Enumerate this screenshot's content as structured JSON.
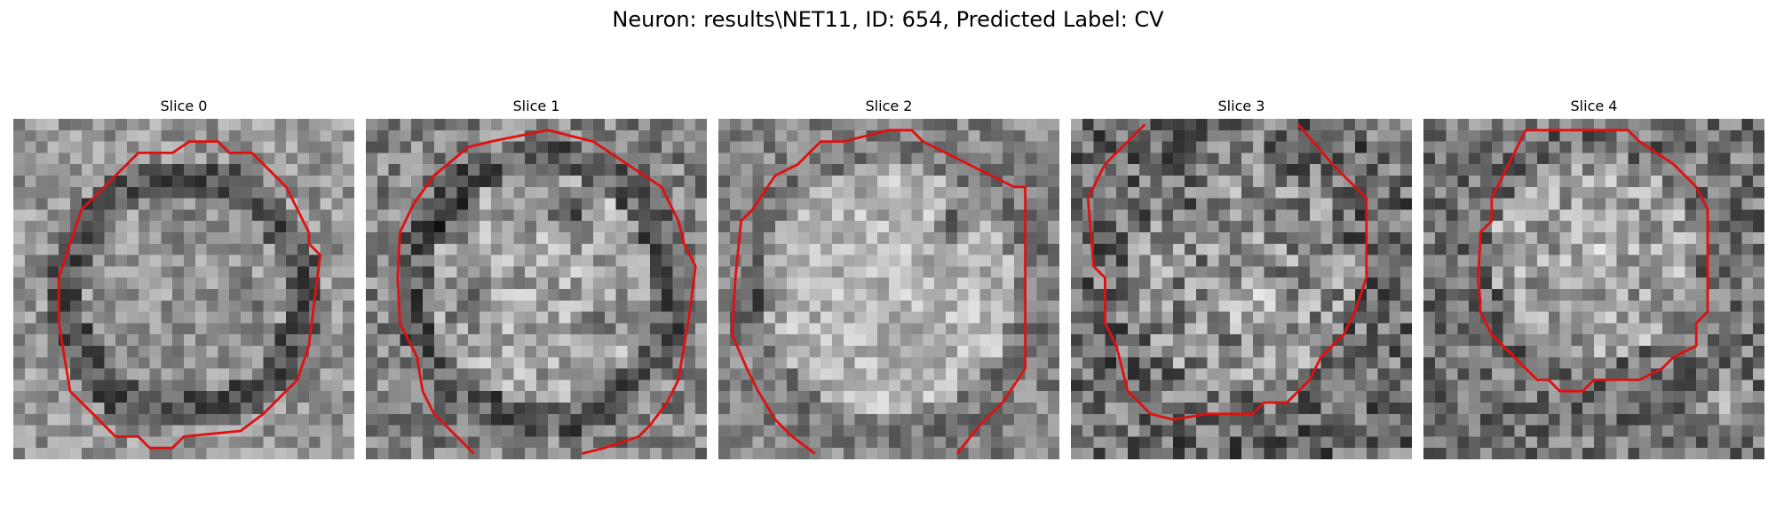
{
  "figure": {
    "title": "Neuron: results\\NET11, ID: 654, Predicted Label: CV"
  },
  "contour_color": "#e01010",
  "slices": [
    {
      "label": "Slice 0"
    },
    {
      "label": "Slice 1"
    },
    {
      "label": "Slice 2"
    },
    {
      "label": "Slice 3"
    },
    {
      "label": "Slice 4"
    }
  ]
}
